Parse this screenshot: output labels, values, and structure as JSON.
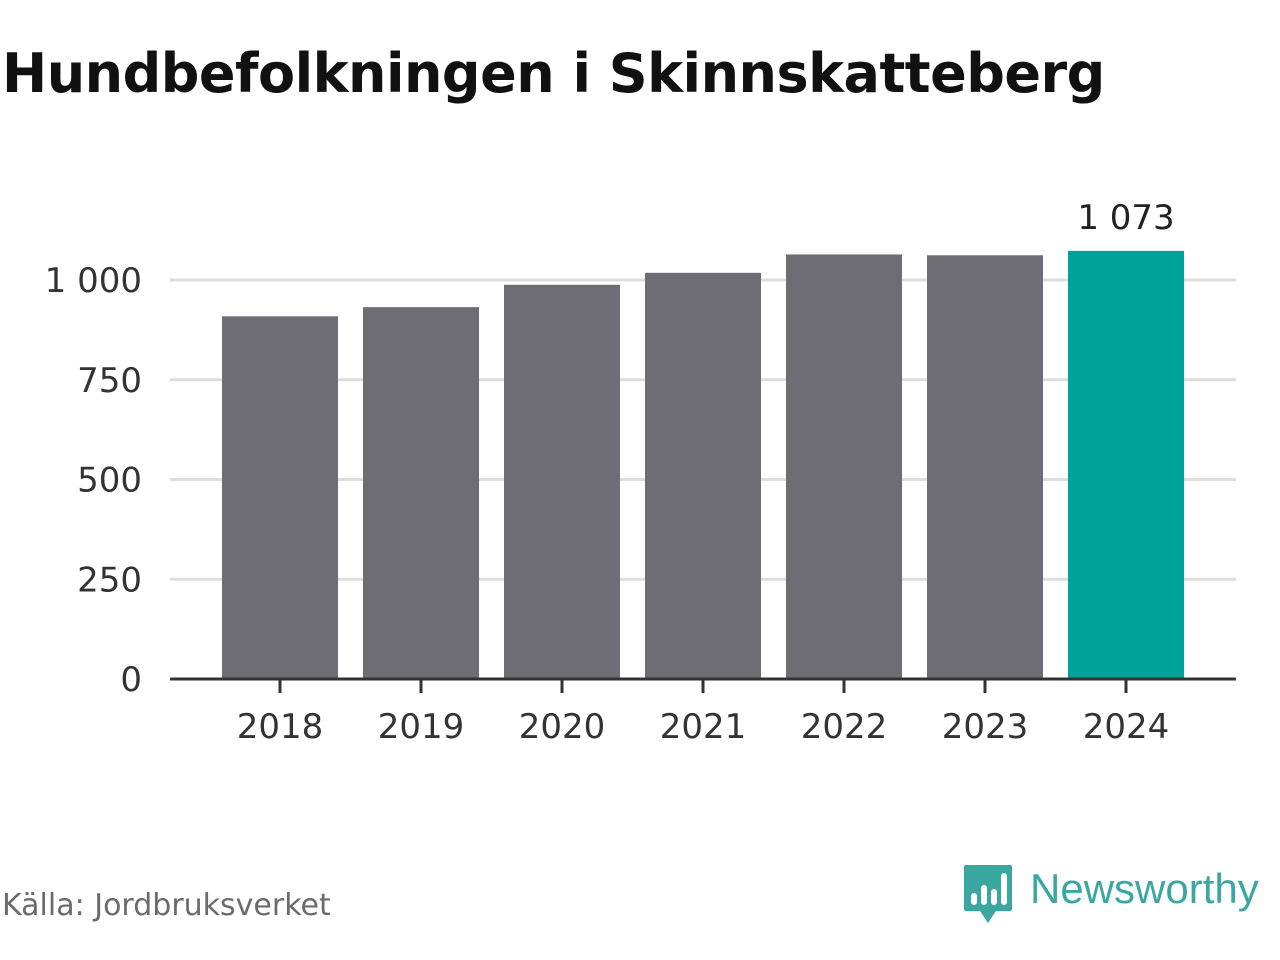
{
  "title": "Hundbefolkningen i Skinnskatteberg",
  "source": "Källa: Jordbruksverket",
  "brand": {
    "name": "Newsworthy",
    "icon": "newsworthy-logo-icon",
    "color": "#3aa8a1"
  },
  "colors": {
    "bar": "#6e6d73",
    "highlight": "#00a39a",
    "grid": "#dddddd",
    "axis": "#333333",
    "text": "#333333"
  },
  "chart_data": {
    "type": "bar",
    "categories": [
      "2018",
      "2019",
      "2020",
      "2021",
      "2022",
      "2023",
      "2024"
    ],
    "values": [
      909,
      932,
      988,
      1018,
      1064,
      1062,
      1073
    ],
    "highlight_index": 6,
    "value_labels": [
      {
        "index": 6,
        "text": "1 073"
      }
    ],
    "y_ticks": [
      0,
      250,
      500,
      750,
      1000
    ],
    "y_tick_labels": [
      "0",
      "250",
      "500",
      "750",
      "1 000"
    ],
    "ylim": [
      0,
      1000
    ],
    "grid": true,
    "title": "Hundbefolkningen i Skinnskatteberg",
    "xlabel": "",
    "ylabel": ""
  }
}
